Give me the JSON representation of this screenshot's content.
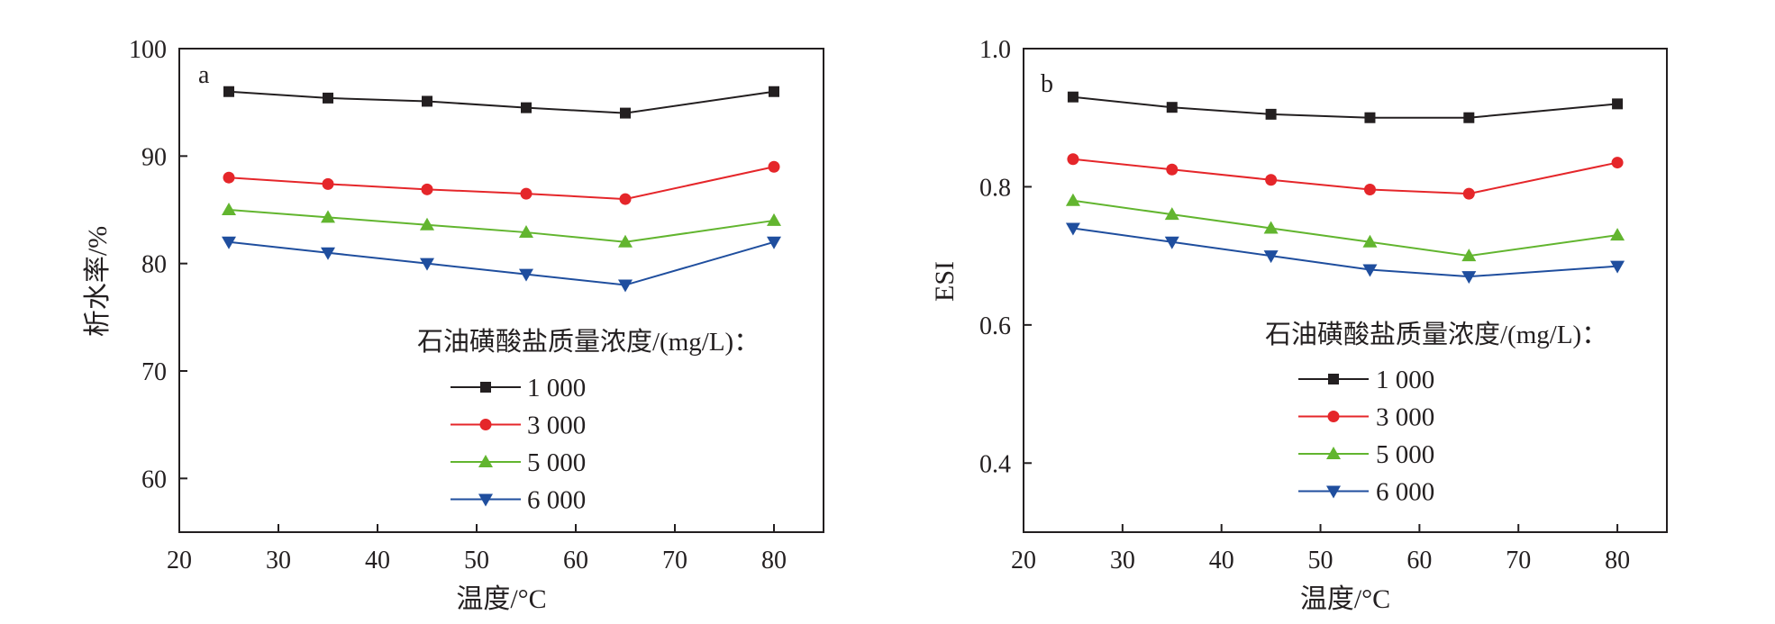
{
  "chart_data": [
    {
      "type": "line",
      "panel_label": "a",
      "xlabel": "温度/°C",
      "ylabel": "析水率/%",
      "xlim": [
        20,
        85
      ],
      "ylim": [
        55,
        100
      ],
      "xticks": [
        20,
        30,
        40,
        50,
        60,
        70,
        80
      ],
      "yticks": [
        60,
        70,
        80,
        90,
        100
      ],
      "x": [
        25,
        35,
        45,
        55,
        65,
        80
      ],
      "legend_title": "石油磺酸盐质量浓度/(mg/L)：",
      "legend_position": "lower-right",
      "series": [
        {
          "name": "1 000",
          "color": "#231f20",
          "marker": "square",
          "values": [
            96.0,
            95.4,
            95.1,
            94.5,
            94.0,
            96.0
          ]
        },
        {
          "name": "3 000",
          "color": "#e5262a",
          "marker": "circle",
          "values": [
            88.0,
            87.4,
            86.9,
            86.5,
            86.0,
            89.0
          ]
        },
        {
          "name": "5 000",
          "color": "#62b52f",
          "marker": "triangle-up",
          "values": [
            85.0,
            84.3,
            83.6,
            82.9,
            82.0,
            84.0
          ]
        },
        {
          "name": "6 000",
          "color": "#1f4e9e",
          "marker": "triangle-down",
          "values": [
            82.0,
            81.0,
            80.0,
            79.0,
            78.0,
            82.0
          ]
        }
      ]
    },
    {
      "type": "line",
      "panel_label": "b",
      "xlabel": "温度/°C",
      "ylabel": "ESI",
      "xlim": [
        20,
        85
      ],
      "ylim": [
        0.3,
        1.0
      ],
      "xticks": [
        20,
        30,
        40,
        50,
        60,
        70,
        80
      ],
      "yticks": [
        "0.4",
        "0.6",
        "0.8",
        "1.0"
      ],
      "x": [
        25,
        35,
        45,
        55,
        65,
        80
      ],
      "legend_title": "石油磺酸盐质量浓度/(mg/L)：",
      "legend_position": "lower-right",
      "series": [
        {
          "name": "1 000",
          "color": "#231f20",
          "marker": "square",
          "values": [
            0.93,
            0.915,
            0.905,
            0.9,
            0.9,
            0.92
          ]
        },
        {
          "name": "3 000",
          "color": "#e5262a",
          "marker": "circle",
          "values": [
            0.84,
            0.825,
            0.81,
            0.796,
            0.79,
            0.835
          ]
        },
        {
          "name": "5 000",
          "color": "#62b52f",
          "marker": "triangle-up",
          "values": [
            0.78,
            0.76,
            0.74,
            0.72,
            0.7,
            0.73
          ]
        },
        {
          "name": "6 000",
          "color": "#1f4e9e",
          "marker": "triangle-down",
          "values": [
            0.74,
            0.72,
            0.7,
            0.68,
            0.67,
            0.685
          ]
        }
      ]
    }
  ]
}
